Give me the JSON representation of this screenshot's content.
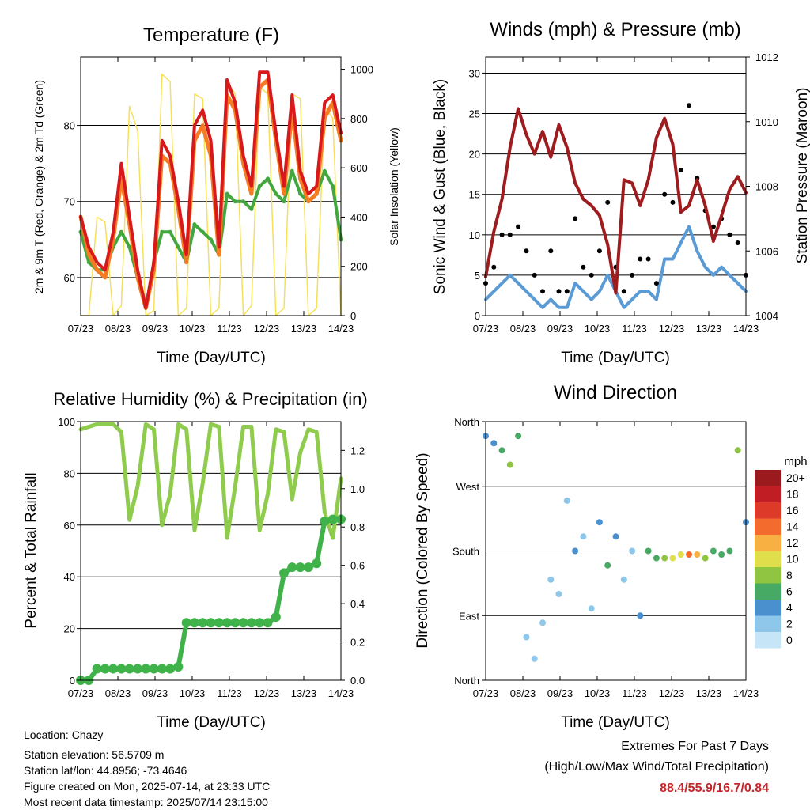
{
  "colors": {
    "t2m": "#d7191c",
    "t9m": "#f57c22",
    "td": "#42a73f",
    "solar": "#f6df5b",
    "gust": "#000000",
    "wind": "#5b9bd5",
    "pressure": "#9e1b1e",
    "rh": "#8fcc4e",
    "precip": "#3fb34a"
  },
  "time_axis": {
    "ticks": [
      "07/23",
      "08/23",
      "09/23",
      "10/23",
      "11/23",
      "12/23",
      "13/23",
      "14/23"
    ],
    "label": "Time (Day/UTC)"
  },
  "chart_data": [
    {
      "type": "line",
      "title": "Temperature (F)",
      "xlabel": "Time (Day/UTC)",
      "ylabel": "2m & 9m T (Red, Orange) & 2m Td (Green)",
      "ylabel_right": "Solar Insolation (Yellow)",
      "ylim": [
        55,
        89
      ],
      "yticks": [
        60,
        70,
        80
      ],
      "ylim_right": [
        0,
        1050
      ],
      "yticks_right": [
        0,
        200,
        400,
        600,
        800,
        1000
      ],
      "x": [
        "07/23 00",
        "07/23 06",
        "07/23 12",
        "07/23 18",
        "08/23 00",
        "08/23 06",
        "08/23 12",
        "08/23 18",
        "09/23 00",
        "09/23 06",
        "09/23 12",
        "09/23 18",
        "10/23 00",
        "10/23 06",
        "10/23 12",
        "10/23 18",
        "11/23 00",
        "11/23 06",
        "11/23 12",
        "11/23 18",
        "12/23 00",
        "12/23 06",
        "12/23 12",
        "12/23 18",
        "13/23 00",
        "13/23 06",
        "13/23 12",
        "13/23 18",
        "14/23 00",
        "14/23 06",
        "14/23 12",
        "14/23 18",
        "14/23 23"
      ],
      "series": [
        {
          "key": "t2m",
          "axis": "left",
          "values": [
            68,
            64,
            62,
            61,
            66,
            75,
            68,
            61,
            56,
            62,
            78,
            76,
            70,
            63,
            80,
            82,
            78,
            64,
            86,
            83,
            76,
            72,
            87,
            87,
            79,
            72,
            84,
            74,
            71,
            72,
            83,
            84,
            79
          ]
        },
        {
          "key": "t9m",
          "axis": "left",
          "values": [
            68,
            63,
            61,
            60,
            65,
            73,
            67,
            60,
            56,
            61,
            76,
            75,
            69,
            62,
            78,
            80,
            76,
            63,
            84,
            82,
            75,
            71,
            85,
            86,
            78,
            71,
            82,
            73,
            70,
            71,
            81,
            83,
            78
          ]
        },
        {
          "key": "td",
          "axis": "left",
          "values": [
            66,
            62,
            61,
            61,
            64,
            66,
            64,
            60,
            56,
            62,
            66,
            66,
            64,
            62,
            67,
            66,
            65,
            63,
            71,
            70,
            70,
            69,
            72,
            73,
            71,
            70,
            74,
            71,
            70,
            71,
            74,
            72,
            65
          ]
        },
        {
          "key": "solar",
          "axis": "right",
          "values": [
            0,
            0,
            400,
            380,
            0,
            40,
            850,
            750,
            0,
            20,
            980,
            950,
            0,
            30,
            900,
            880,
            0,
            30,
            950,
            900,
            0,
            40,
            930,
            900,
            0,
            30,
            900,
            880,
            0,
            30,
            850,
            800,
            0
          ]
        }
      ]
    },
    {
      "type": "line",
      "title": "Winds (mph) & Pressure (mb)",
      "xlabel": "Time (Day/UTC)",
      "ylabel": "Sonic Wind & Gust (Blue, Black)",
      "ylabel_right": "Station Pressure (Maroon)",
      "ylim": [
        0,
        32
      ],
      "yticks": [
        0,
        5,
        10,
        15,
        20,
        25,
        30
      ],
      "ylim_right": [
        1004,
        1012
      ],
      "yticks_right": [
        1004,
        1006,
        1008,
        1010,
        1012
      ],
      "x": [
        "07/23 00",
        "07/23 06",
        "07/23 12",
        "07/23 18",
        "08/23 00",
        "08/23 06",
        "08/23 12",
        "08/23 18",
        "09/23 00",
        "09/23 06",
        "09/23 12",
        "09/23 18",
        "10/23 00",
        "10/23 06",
        "10/23 12",
        "10/23 18",
        "11/23 00",
        "11/23 06",
        "11/23 12",
        "11/23 18",
        "12/23 00",
        "12/23 06",
        "12/23 12",
        "12/23 18",
        "13/23 00",
        "13/23 06",
        "13/23 12",
        "13/23 18",
        "14/23 00",
        "14/23 06",
        "14/23 12",
        "14/23 18",
        "14/23 23"
      ],
      "series": [
        {
          "key": "gust",
          "axis": "left",
          "values": [
            4,
            6,
            10,
            10,
            11,
            8,
            5,
            3,
            8,
            3,
            3,
            12,
            6,
            5,
            8,
            14,
            6,
            3,
            5,
            7,
            7,
            4,
            15,
            14,
            18,
            26,
            17,
            13,
            11,
            12,
            10,
            9,
            5
          ]
        },
        {
          "key": "wind",
          "axis": "left",
          "values": [
            2,
            3,
            4,
            5,
            4,
            3,
            2,
            1,
            2,
            1,
            1,
            4,
            3,
            2,
            3,
            5,
            3,
            1,
            2,
            3,
            3,
            2,
            7,
            7,
            9,
            11,
            8,
            6,
            5,
            6,
            5,
            4,
            3
          ]
        },
        {
          "key": "pressure",
          "axis": "right",
          "values": [
            1005.2,
            1006.6,
            1007.6,
            1009.2,
            1010.4,
            1009.6,
            1009.0,
            1009.7,
            1008.9,
            1009.9,
            1009.2,
            1008.1,
            1007.6,
            1007.4,
            1007.1,
            1006.2,
            1004.7,
            1008.2,
            1008.1,
            1007.4,
            1008.2,
            1009.5,
            1010.1,
            1009.3,
            1007.2,
            1007.4,
            1008.2,
            1007.4,
            1006.3,
            1007.1,
            1007.9,
            1008.3,
            1007.8
          ]
        }
      ]
    },
    {
      "type": "line",
      "title": "Relative Humidity (%) & Precipitation (in)",
      "xlabel": "Time (Day/UTC)",
      "ylabel": "Percent & Total Rainfall",
      "ylim": [
        0,
        100
      ],
      "yticks": [
        0,
        20,
        40,
        60,
        80,
        100
      ],
      "ylim_right": [
        0,
        1.35
      ],
      "yticks_right": [
        0.0,
        0.2,
        0.4,
        0.6,
        0.8,
        1.0,
        1.2
      ],
      "x": [
        "07/23 00",
        "07/23 06",
        "07/23 12",
        "07/23 18",
        "08/23 00",
        "08/23 06",
        "08/23 12",
        "08/23 18",
        "09/23 00",
        "09/23 06",
        "09/23 12",
        "09/23 18",
        "10/23 00",
        "10/23 06",
        "10/23 12",
        "10/23 18",
        "11/23 00",
        "11/23 06",
        "11/23 12",
        "11/23 18",
        "12/23 00",
        "12/23 06",
        "12/23 12",
        "12/23 18",
        "13/23 00",
        "13/23 06",
        "13/23 12",
        "13/23 18",
        "14/23 00",
        "14/23 06",
        "14/23 12",
        "14/23 18",
        "14/23 23"
      ],
      "series": [
        {
          "key": "rh",
          "axis": "left",
          "values": [
            97,
            98,
            99,
            99,
            99,
            96,
            62,
            75,
            99,
            97,
            60,
            72,
            99,
            97,
            58,
            76,
            99,
            98,
            55,
            75,
            98,
            98,
            58,
            72,
            97,
            96,
            70,
            88,
            97,
            96,
            65,
            55,
            78
          ]
        },
        {
          "key": "precip",
          "axis": "right",
          "values": [
            0.0,
            0.0,
            0.06,
            0.06,
            0.06,
            0.06,
            0.06,
            0.06,
            0.06,
            0.06,
            0.06,
            0.06,
            0.07,
            0.3,
            0.3,
            0.3,
            0.3,
            0.3,
            0.3,
            0.3,
            0.3,
            0.3,
            0.3,
            0.3,
            0.33,
            0.56,
            0.59,
            0.59,
            0.59,
            0.61,
            0.83,
            0.84,
            0.84
          ]
        }
      ]
    },
    {
      "type": "scatter",
      "title": "Wind Direction",
      "xlabel": "Time (Day/UTC)",
      "ylabel": "Direction (Colored By Speed)",
      "yticks": [
        "North",
        "East",
        "South",
        "West",
        "North"
      ],
      "ylim": [
        0,
        360
      ],
      "colorbar": {
        "title": "mph",
        "labels": [
          "0",
          "2",
          "4",
          "6",
          "8",
          "10",
          "12",
          "14",
          "16",
          "18",
          "20+"
        ],
        "colors": [
          "#c6e6f8",
          "#8ec7ea",
          "#4a8fce",
          "#46a964",
          "#8fc540",
          "#e0de4a",
          "#f9b043",
          "#f46b2e",
          "#dd3a2a",
          "#c01d24",
          "#9a1a1e"
        ]
      },
      "x": [
        "07/23 00",
        "07/23 06",
        "07/23 12",
        "07/23 18",
        "08/23 00",
        "08/23 06",
        "08/23 12",
        "08/23 18",
        "09/23 00",
        "09/23 06",
        "09/23 12",
        "09/23 18",
        "10/23 00",
        "10/23 06",
        "10/23 12",
        "10/23 18",
        "11/23 00",
        "11/23 06",
        "11/23 12",
        "11/23 18",
        "12/23 00",
        "12/23 06",
        "12/23 12",
        "12/23 18",
        "13/23 00",
        "13/23 06",
        "13/23 12",
        "13/23 18",
        "14/23 00",
        "14/23 06",
        "14/23 12",
        "14/23 18",
        "14/23 23"
      ],
      "series": [
        {
          "name": "direction",
          "values": [
            340,
            330,
            320,
            300,
            340,
            60,
            30,
            80,
            140,
            120,
            250,
            180,
            200,
            100,
            220,
            160,
            200,
            140,
            180,
            90,
            180,
            170,
            170,
            170,
            175,
            175,
            175,
            170,
            180,
            175,
            180,
            320,
            220
          ]
        },
        {
          "name": "speed",
          "values": [
            3,
            4,
            6,
            8,
            5,
            2,
            1,
            1,
            2,
            1,
            1,
            3,
            2,
            2,
            3,
            5,
            3,
            1,
            1,
            3,
            5,
            6,
            8,
            9,
            10,
            14,
            12,
            8,
            6,
            5,
            6,
            8,
            4
          ]
        }
      ]
    }
  ],
  "info": {
    "location": "Location: Chazy",
    "elevation": "Station elevation: 56.5709 m",
    "latlon": "Station lat/lon: 44.8956; -73.4646",
    "created": "Figure created on Mon, 2025-07-14, at 23:33 UTC",
    "timestamp": "Most recent data timestamp: 2025/07/14 23:15:00"
  },
  "extremes": {
    "heading": "Extremes For Past 7 Days",
    "subheading": "(High/Low/Max Wind/Total Precipitation)",
    "values": "88.4/55.9/16.7/0.84"
  }
}
